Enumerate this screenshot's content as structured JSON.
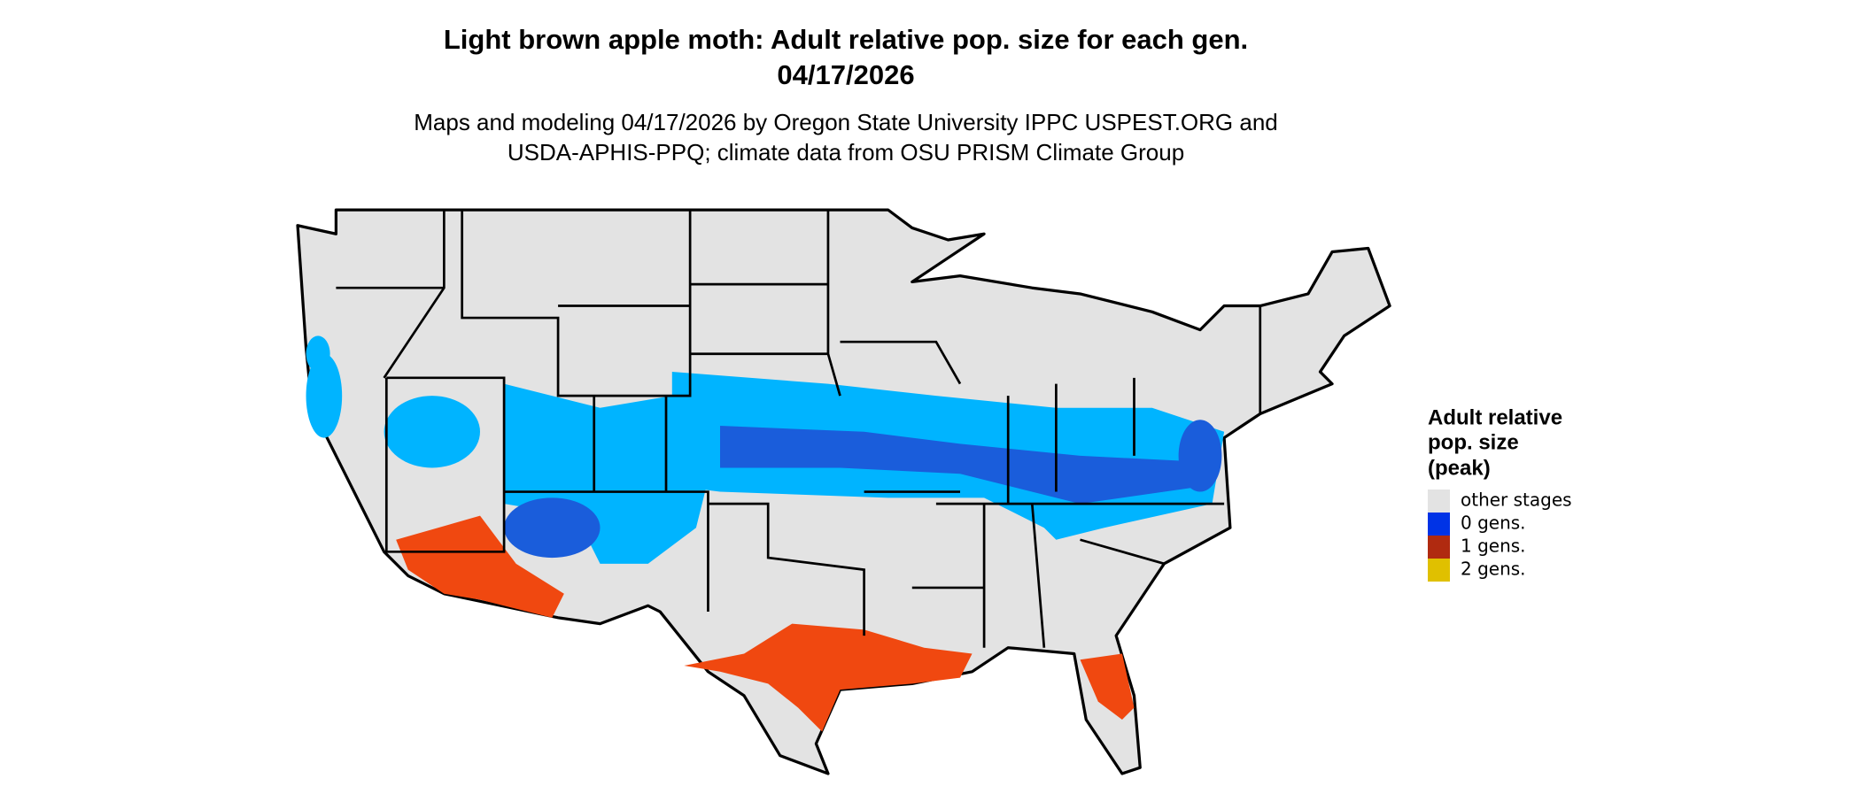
{
  "header": {
    "title": [
      "Light brown apple moth: Adult relative pop. size for each gen.",
      "04/17/2026"
    ],
    "subtitle": [
      "Maps and modeling 04/17/2026 by Oregon State University IPPC USPEST.ORG and",
      "USDA-APHIS-PPQ; climate data from OSU PRISM Climate Group"
    ]
  },
  "legend": {
    "title": [
      "Adult relative",
      "pop. size",
      "(peak)"
    ],
    "items": [
      {
        "label": "other stages",
        "color": "#e3e3e3"
      },
      {
        "label": "0 gens.",
        "color": "#0033e6"
      },
      {
        "label": "1 gens.",
        "color": "#b02a10"
      },
      {
        "label": "2 gens.",
        "color": "#e0c000"
      }
    ]
  }
}
